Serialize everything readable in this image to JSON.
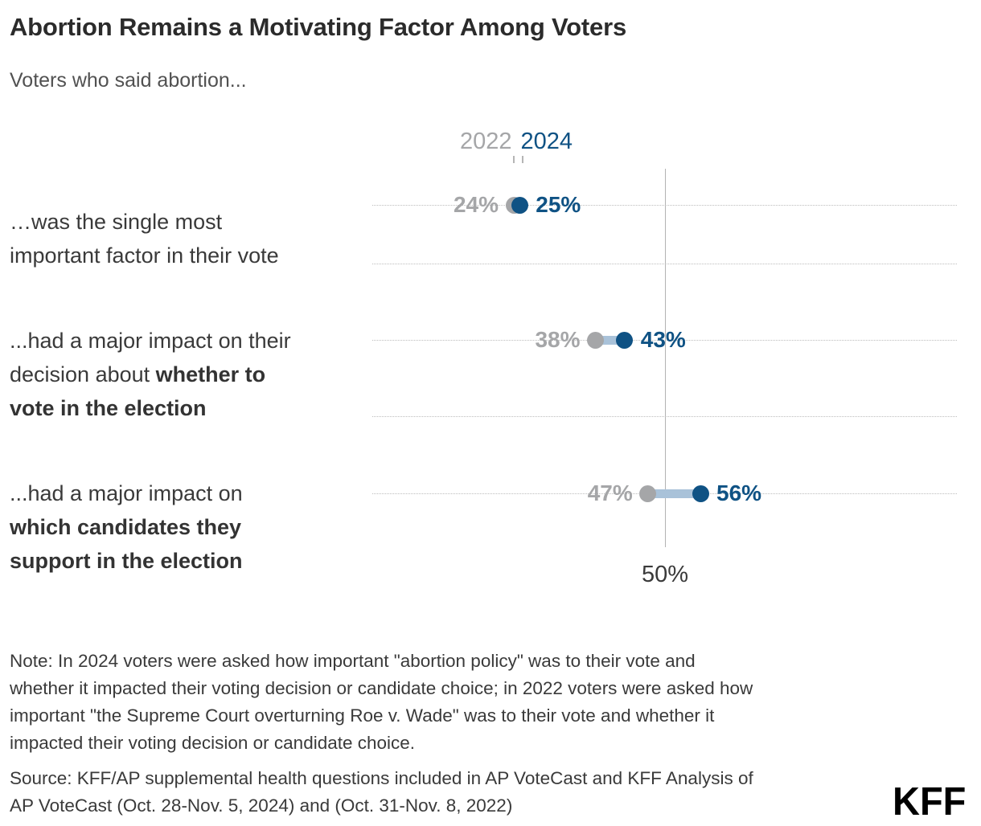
{
  "title": "Abortion Remains a Motivating Factor Among Voters",
  "subtitle": "Voters who said abortion...",
  "legend": {
    "label_2022": "2022",
    "label_2024": "2024"
  },
  "axis": {
    "reference_value_label": "50%"
  },
  "rows": [
    {
      "label_normal": "…was the single most\nimportant factor in their vote",
      "label_bold": ""
    },
    {
      "label_normal": "...had a major impact on their\ndecision about ",
      "label_bold": "whether to\nvote in the election"
    },
    {
      "label_normal": "...had a major impact on\n",
      "label_bold": "which candidates they\nsupport in the election"
    }
  ],
  "chart_data": {
    "type": "scatter",
    "variant": "dumbbell-dot-plot",
    "title": "Abortion Remains a Motivating Factor Among Voters",
    "subtitle": "Voters who said abortion...",
    "categories": [
      "…was the single most important factor in their vote",
      "...had a major impact on their decision about whether to vote in the election",
      "...had a major impact on which candidates they support in the election"
    ],
    "series": [
      {
        "name": "2022",
        "values": [
          24,
          38,
          47
        ],
        "color": "#a5a6a8"
      },
      {
        "name": "2024",
        "values": [
          25,
          43,
          56
        ],
        "color": "#0f5284"
      }
    ],
    "value_suffix": "%",
    "reference_line": {
      "value": 50,
      "label": "50%"
    },
    "xlim": [
      0,
      100
    ],
    "grid": "dotted-horizontal-per-row",
    "legend_position": "top-center",
    "connector_color": "#a9c2d9"
  },
  "note": "Note: In 2024 voters were asked how important \"abortion policy\" was to their vote and\nwhether it impacted their voting decision or candidate choice; in 2022 voters were asked how\nimportant \"the Supreme Court overturning Roe v. Wade\" was to their vote and whether it\nimpacted their voting decision or candidate choice.",
  "source": "Source: KFF/AP supplemental health questions included in AP VoteCast and KFF Analysis of\nAP VoteCast (Oct. 28-Nov. 5, 2024) and (Oct. 31-Nov. 8, 2022)",
  "logo": "KFF",
  "colors": {
    "accent_2024": "#0f5284",
    "muted_2022": "#a5a6a8",
    "connector": "#a9c2d9",
    "text": "#3a3a3a"
  }
}
